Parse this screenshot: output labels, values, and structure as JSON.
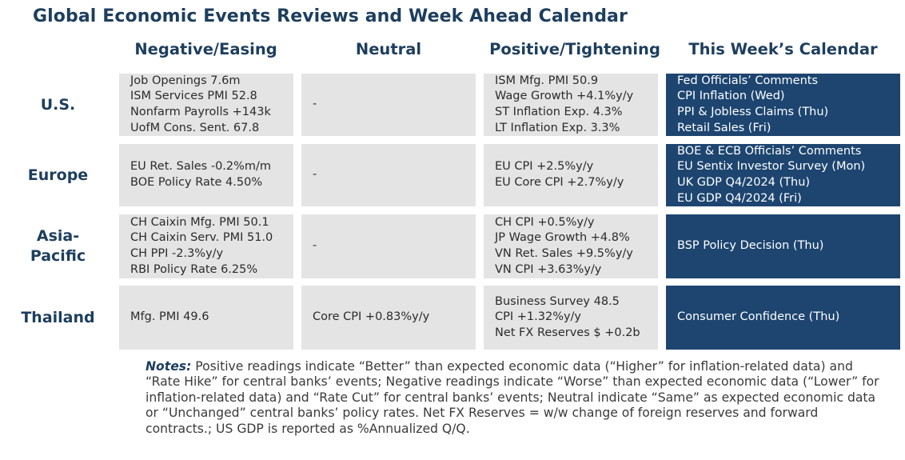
{
  "title": "Global Economic Events Reviews and Week Ahead Calendar",
  "columns": [
    "Negative/Easing",
    "Neutral",
    "Positive/Tightening",
    "This Week’s Calendar"
  ],
  "rows": [
    {
      "label": "U.S.",
      "negative": [
        "Job Openings 7.6m",
        "ISM Services PMI 52.8",
        "Nonfarm Payrolls +143k",
        "UofM Cons. Sent. 67.8"
      ],
      "neutral": [
        "-"
      ],
      "positive": [
        "ISM Mfg. PMI 50.9",
        "Wage Growth +4.1%y/y",
        "ST Inflation Exp. 4.3%",
        "LT Inflation Exp. 3.3%"
      ],
      "calendar": [
        "Fed Officials’ Comments",
        "CPI Inflation (Wed)",
        "PPI & Jobless Claims (Thu)",
        "Retail Sales (Fri)"
      ]
    },
    {
      "label": "Europe",
      "negative": [
        "EU Ret. Sales -0.2%m/m",
        "BOE Policy Rate 4.50%"
      ],
      "neutral": [
        "-"
      ],
      "positive": [
        "EU CPI +2.5%y/y",
        "EU Core CPI +2.7%y/y"
      ],
      "calendar": [
        "BOE & ECB Officials’ Comments",
        "EU Sentix Investor Survey (Mon)",
        "UK GDP Q4/2024 (Thu)",
        "EU GDP Q4/2024 (Fri)"
      ]
    },
    {
      "label_lines": [
        "Asia-",
        "Pacific"
      ],
      "negative": [
        "CH Caixin Mfg. PMI 50.1",
        "CH Caixin Serv. PMI 51.0",
        "CH PPI -2.3%y/y",
        "RBI Policy Rate 6.25%"
      ],
      "neutral": [
        "-"
      ],
      "positive": [
        "CH CPI +0.5%y/y",
        "JP Wage Growth +4.8%",
        "VN Ret. Sales +9.5%y/y",
        "VN CPI +3.63%y/y"
      ],
      "calendar": [
        "BSP Policy Decision (Thu)"
      ]
    },
    {
      "label": "Thailand",
      "negative": [
        "Mfg. PMI 49.6"
      ],
      "neutral": [
        "Core CPI +0.83%y/y"
      ],
      "positive": [
        "Business Survey 48.5",
        "CPI +1.32%y/y",
        "Net FX Reserves $ +0.2b"
      ],
      "calendar": [
        "Consumer Confidence (Thu)"
      ]
    }
  ],
  "notes": {
    "label": "Notes:",
    "text": " Positive readings indicate “Better” than expected economic data (“Higher” for inflation-related data) and “Rate Hike” for central banks’ events; Negative readings indicate “Worse” than expected economic data (“Lower” for inflation-related data) and “Rate Cut” for central banks’ events; Neutral indicate “Same” as expected economic data or “Unchanged” central banks’ policy rates. Net FX Reserves = w/w change of foreign reserves and forward contracts.; US GDP is reported as %Annualized Q/Q."
  },
  "colors": {
    "title": "#1d3e5e",
    "grey_cell": "#e4e4e5",
    "calendar_cell": "#1d4570"
  }
}
